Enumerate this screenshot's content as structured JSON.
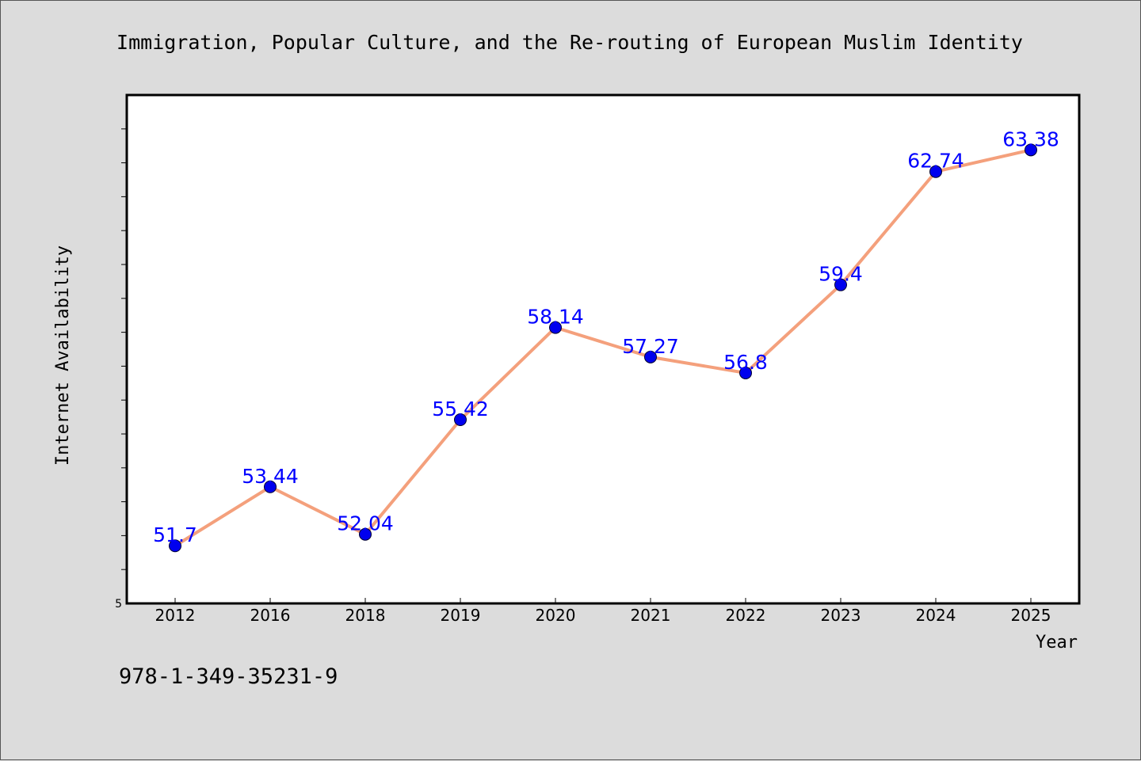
{
  "chart_data": {
    "type": "line",
    "title": "Immigration, Popular Culture, and the Re-routing of European Muslim Identity",
    "xlabel": "Year",
    "ylabel": "Internet Availability",
    "categories": [
      "2012",
      "2016",
      "2018",
      "2019",
      "2020",
      "2021",
      "2022",
      "2023",
      "2024",
      "2025"
    ],
    "series": [
      {
        "values": [
          51.7,
          53.44,
          52.04,
          55.42,
          58.14,
          57.27,
          56.8,
          59.4,
          62.74,
          63.38
        ],
        "labels": [
          "51.7",
          "53.44",
          "52.04",
          "55.42",
          "58.14",
          "57.27",
          "56.8",
          "59.4",
          "62.74",
          "63.38"
        ],
        "line_color": "#f4a07c",
        "marker_color": "#0000ee"
      }
    ],
    "ylim": [
      50,
      65
    ],
    "ytick_label": "5",
    "grid": false,
    "background": "#ffffff",
    "page_background": "#dcdcdc"
  },
  "footer": {
    "isbn": "978-1-349-35231-9"
  }
}
